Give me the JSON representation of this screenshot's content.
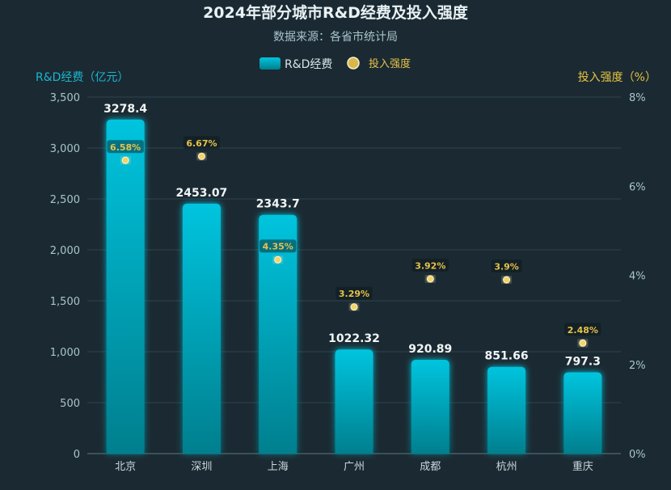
{
  "chart_data": {
    "type": "bar",
    "title": "2024年部分城市R&D经费及投入强度",
    "subtitle": "数据来源：各省市统计局",
    "categories": [
      "北京",
      "深圳",
      "上海",
      "广州",
      "成都",
      "杭州",
      "重庆"
    ],
    "series": [
      {
        "name": "R&D经费",
        "type": "bar",
        "axis": "left",
        "values": [
          3278.4,
          2453.07,
          2343.7,
          1022.32,
          920.89,
          851.66,
          797.3
        ],
        "labels": [
          "3278.4",
          "2453.07",
          "2343.7",
          "1022.32",
          "920.89",
          "851.66",
          "797.3"
        ]
      },
      {
        "name": "投入强度",
        "type": "scatter",
        "axis": "right",
        "values": [
          6.58,
          6.67,
          4.35,
          3.29,
          3.92,
          3.9,
          2.48
        ],
        "labels": [
          "6.58%",
          "6.67%",
          "4.35%",
          "3.29%",
          "3.92%",
          "3.9%",
          "2.48%"
        ]
      }
    ],
    "ylabel_left": "R&D经费（亿元）",
    "ylabel_right": "投入强度（%）",
    "ylim_left": [
      0,
      3500
    ],
    "ylim_right": [
      0,
      8
    ],
    "yticks_left": [
      "0",
      "500",
      "1,000",
      "1,500",
      "2,000",
      "2,500",
      "3,000",
      "3,500"
    ],
    "yticks_right": [
      "0%",
      "2%",
      "4%",
      "6%",
      "8%"
    ],
    "grid": true,
    "legend_position": "top-center",
    "colors": {
      "bar_top": "#00c2dc",
      "bar_bottom": "#00808f",
      "point": "#f2d46a",
      "point_label": "#e6c24a",
      "left_axis": "#19b6cf",
      "right_axis": "#e8c33f"
    }
  }
}
